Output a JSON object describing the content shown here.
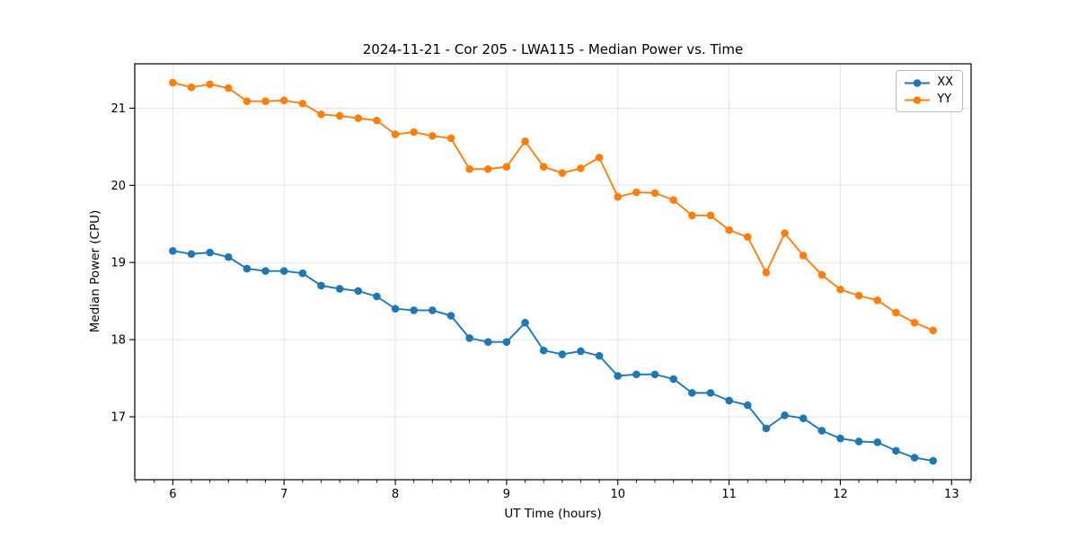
{
  "chart_data": {
    "type": "line",
    "title": "2024-11-21 - Cor 205 - LWA115 - Median Power vs. Time",
    "xlabel": "UT Time (hours)",
    "ylabel": "Median Power (CPU)",
    "x": [
      6,
      6.1667,
      6.3333,
      6.5,
      6.6667,
      6.8333,
      7,
      7.1667,
      7.3333,
      7.5,
      7.6667,
      7.8333,
      8,
      8.1667,
      8.3333,
      8.5,
      8.6667,
      8.8333,
      9,
      9.1667,
      9.3333,
      9.5,
      9.6667,
      9.8333,
      10,
      10.1667,
      10.3333,
      10.5,
      10.6667,
      10.8333,
      11,
      11.1667,
      11.3333,
      11.5,
      11.6667,
      11.8333,
      12,
      12.1667,
      12.3333,
      12.5,
      12.6667,
      12.8333
    ],
    "series": [
      {
        "name": "XX",
        "color": "#1f77b4",
        "values": [
          19.15,
          19.11,
          19.13,
          19.07,
          18.92,
          18.89,
          18.89,
          18.86,
          18.7,
          18.66,
          18.63,
          18.56,
          18.4,
          18.38,
          18.38,
          18.31,
          18.02,
          17.97,
          17.97,
          18.22,
          17.86,
          17.81,
          17.85,
          17.79,
          17.53,
          17.55,
          17.55,
          17.49,
          17.31,
          17.31,
          17.21,
          17.15,
          16.85,
          17.02,
          16.98,
          16.82,
          16.72,
          16.68,
          16.67,
          16.56,
          16.47,
          16.43
        ]
      },
      {
        "name": "YY",
        "color": "#ff7f0e",
        "values": [
          21.33,
          21.27,
          21.31,
          21.26,
          21.09,
          21.09,
          21.1,
          21.06,
          20.92,
          20.9,
          20.87,
          20.84,
          20.66,
          20.69,
          20.64,
          20.61,
          20.21,
          20.21,
          20.24,
          20.57,
          20.24,
          20.16,
          20.22,
          20.36,
          19.85,
          19.91,
          19.9,
          19.81,
          19.61,
          19.61,
          19.42,
          19.33,
          18.87,
          19.38,
          19.09,
          18.84,
          18.65,
          18.57,
          18.51,
          18.35,
          18.22,
          18.12
        ]
      }
    ],
    "xlim": [
      5.658,
      13.175
    ],
    "ylim": [
      16.185,
      21.575
    ],
    "xticks": [
      6,
      7,
      8,
      9,
      10,
      11,
      12,
      13
    ],
    "yticks": [
      17,
      18,
      19,
      20,
      21
    ],
    "x_minor_tick_step": 0.16667,
    "grid": true,
    "legend_position": "upper right",
    "marker": "o",
    "styles": {
      "grid_color": "#e3e3e3",
      "spine_color": "#000000",
      "tick_color": "#000000",
      "background": "#ffffff"
    }
  }
}
